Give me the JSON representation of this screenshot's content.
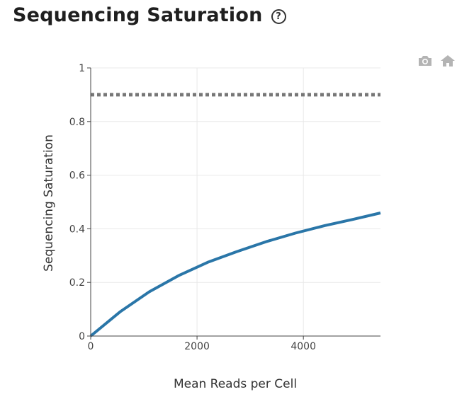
{
  "header": {
    "title": "Sequencing Saturation",
    "help_glyph": "?"
  },
  "modebar": {
    "icons": [
      "camera-icon",
      "home-icon"
    ],
    "color": "#b4b4b4"
  },
  "colors": {
    "series_line": "#2a76a8",
    "reference_line": "#777777",
    "grid": "#e8e8e8",
    "axis": "#444444"
  },
  "chart_data": {
    "type": "line",
    "title": "",
    "xlabel": "Mean Reads per Cell",
    "ylabel": "Sequencing Saturation",
    "xlim": [
      0,
      5450
    ],
    "ylim": [
      0,
      1
    ],
    "xticks": [
      0,
      2000,
      4000
    ],
    "xtick_labels": [
      "0",
      "2000",
      "4000"
    ],
    "yticks": [
      0,
      0.2,
      0.4,
      0.6,
      0.8,
      1
    ],
    "ytick_labels": [
      "0",
      "0.2",
      "0.4",
      "0.6",
      "0.8",
      "1"
    ],
    "grid": true,
    "legend": "none",
    "series": [
      {
        "style": "solid",
        "x": [
          0,
          550,
          1100,
          1650,
          2200,
          2750,
          3300,
          3850,
          4400,
          4950,
          5450
        ],
        "y": [
          0,
          0.09,
          0.165,
          0.225,
          0.275,
          0.315,
          0.352,
          0.384,
          0.412,
          0.436,
          0.459
        ]
      },
      {
        "style": "dotted",
        "x": [
          0,
          5450
        ],
        "y": [
          0.9,
          0.9
        ]
      }
    ]
  }
}
